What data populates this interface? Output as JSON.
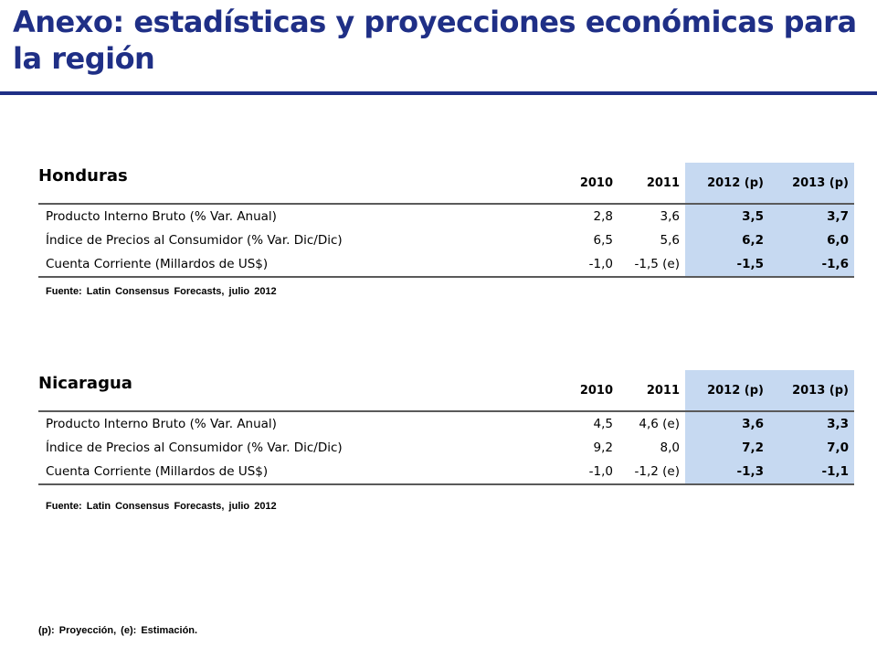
{
  "title": "Anexo: estadísticas y proyecciones económicas para la región",
  "columns": [
    "2010",
    "2011",
    "2012 (p)",
    "2013 (p)"
  ],
  "tables": [
    {
      "country": "Honduras",
      "rows": [
        {
          "label": "Producto Interno Bruto (% Var. Anual)",
          "v2010": "2,8",
          "v2011": "3,6",
          "v2012": "3,5",
          "v2013": "3,7"
        },
        {
          "label": "Índice de Precios al Consumidor (% Var. Dic/Dic)",
          "v2010": "6,5",
          "v2011": "5,6",
          "v2012": "6,2",
          "v2013": "6,0"
        },
        {
          "label": "Cuenta Corriente (Millardos de US$)",
          "v2010": "-1,0",
          "v2011": "-1,5 (e)",
          "v2012": "-1,5",
          "v2013": "-1,6"
        }
      ],
      "source": "Fuente: Latin Consensus Forecasts, julio 2012"
    },
    {
      "country": "Nicaragua",
      "rows": [
        {
          "label": "Producto Interno Bruto (% Var. Anual)",
          "v2010": "4,5",
          "v2011": "4,6 (e)",
          "v2012": "3,6",
          "v2013": "3,3"
        },
        {
          "label": "Índice de Precios al Consumidor (% Var. Dic/Dic)",
          "v2010": "9,2",
          "v2011": "8,0",
          "v2012": "7,2",
          "v2013": "7,0"
        },
        {
          "label": "Cuenta Corriente (Millardos de US$)",
          "v2010": "-1,0",
          "v2011": "-1,2 (e)",
          "v2012": "-1,3",
          "v2013": "-1,1"
        }
      ],
      "source": "Fuente: Latin Consensus Forecasts, julio 2012"
    }
  ],
  "footnote": "(p): Proyección, (e): Estimación.",
  "colors": {
    "title": "#1f2f86",
    "projection_fill": "#c6d9f1"
  }
}
